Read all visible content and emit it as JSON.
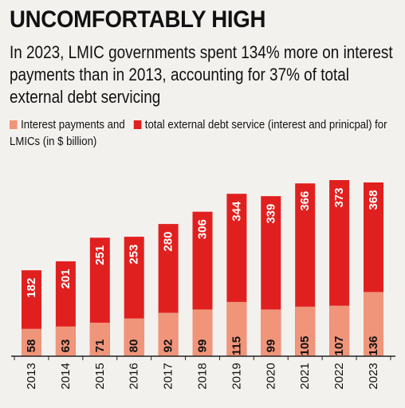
{
  "header": {
    "title": "UNCOMFORTABLY HIGH",
    "subtitle": "In 2023, LMIC governments spent 134% more on interest payments than in 2013, accounting for 37% of total external debt servicing"
  },
  "legend": {
    "interest_label": "Interest payments and",
    "total_label": "total external debt service (interest and prinicpal) for LMICs (in $ billion)"
  },
  "colors": {
    "interest": "#f0957a",
    "total": "#e0201f",
    "text": "#111111"
  },
  "chart_data": {
    "type": "bar",
    "title": "UNCOMFORTABLY HIGH",
    "categories": [
      "2013",
      "2014",
      "2015",
      "2016",
      "2017",
      "2018",
      "2019",
      "2020",
      "2021",
      "2022",
      "2023"
    ],
    "series": [
      {
        "name": "Interest payments",
        "values": [
          58,
          63,
          71,
          80,
          92,
          99,
          115,
          99,
          105,
          107,
          136
        ]
      },
      {
        "name": "total external debt service (interest and prinicpal) for LMICs (in $ billion)",
        "values": [
          182,
          201,
          251,
          253,
          280,
          306,
          344,
          339,
          366,
          373,
          368
        ]
      }
    ],
    "ylim": [
      0,
      400
    ],
    "grid": false,
    "legend_position": "top",
    "unit": "$ billion"
  }
}
